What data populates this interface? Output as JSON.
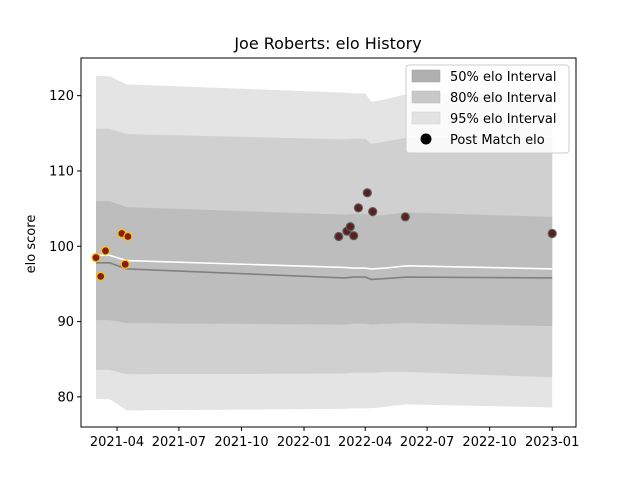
{
  "chart_data": {
    "type": "line",
    "title": "Joe Roberts: elo History",
    "xlabel": "",
    "ylabel": "elo score",
    "xlim": [
      "2021-02-07",
      "2023-02-05"
    ],
    "ylim": [
      76,
      125
    ],
    "x_ticks": [
      "2021-04-01",
      "2021-07-01",
      "2021-10-01",
      "2022-01-01",
      "2022-04-01",
      "2022-07-01",
      "2022-10-01",
      "2023-01-01"
    ],
    "x_tick_labels": [
      "2021-04",
      "2021-07",
      "2021-10",
      "2022-01",
      "2022-04",
      "2022-07",
      "2022-10",
      "2023-01"
    ],
    "y_ticks": [
      80,
      90,
      100,
      110,
      120
    ],
    "y_tick_labels": [
      "80",
      "90",
      "100",
      "110",
      "120"
    ],
    "grid": false,
    "legend_position": "top-right",
    "legend": [
      {
        "label": "50% elo Interval",
        "kind": "patch",
        "color": "#b0b0b0"
      },
      {
        "label": "80% elo Interval",
        "kind": "patch",
        "color": "#c8c8c8"
      },
      {
        "label": "95% elo Interval",
        "kind": "patch",
        "color": "#e2e2e2"
      },
      {
        "label": "Post Match elo",
        "kind": "marker",
        "color": "#000000"
      }
    ],
    "band_dates": [
      "2021-03-01",
      "2021-03-21",
      "2021-04-15",
      "2022-03-01",
      "2022-03-15",
      "2022-04-01",
      "2022-04-10",
      "2022-05-01",
      "2022-06-01",
      "2023-01-01"
    ],
    "interval_bands": [
      {
        "name": "95% elo Interval",
        "color": "#e4e4e4",
        "lower": [
          79.7,
          79.7,
          78.2,
          78.4,
          78.5,
          78.5,
          78.5,
          78.7,
          79.0,
          78.6
        ],
        "upper": [
          122.6,
          122.6,
          121.5,
          120.4,
          120.3,
          120.3,
          119.2,
          119.5,
          120.2,
          120.2
        ]
      },
      {
        "name": "80% elo Interval",
        "color": "#d0d0d0",
        "lower": [
          83.6,
          83.6,
          83.0,
          83.1,
          83.2,
          83.2,
          83.2,
          83.3,
          83.3,
          82.6
        ],
        "upper": [
          115.6,
          115.6,
          114.9,
          114.2,
          114.3,
          114.3,
          113.6,
          113.9,
          114.4,
          114.5
        ]
      },
      {
        "name": "50% elo Interval",
        "color": "#bdbdbd",
        "lower": [
          90.2,
          90.2,
          89.8,
          89.6,
          89.7,
          89.7,
          89.6,
          89.7,
          89.8,
          89.4
        ],
        "upper": [
          106.0,
          106.0,
          105.2,
          104.2,
          104.3,
          104.3,
          104.0,
          104.2,
          104.5,
          103.9
        ]
      }
    ],
    "series": [
      {
        "style": "mean",
        "color": "#ffffff",
        "values": [
          98.8,
          98.8,
          98.1,
          97.2,
          97.1,
          97.1,
          97.0,
          97.1,
          97.4,
          97.0
        ]
      },
      {
        "style": "median",
        "color": "#808080",
        "values": [
          97.8,
          97.8,
          97.0,
          95.8,
          95.9,
          95.9,
          95.6,
          95.7,
          95.9,
          95.8
        ]
      }
    ],
    "post_match_points": [
      {
        "date": "2021-03-01",
        "elo": 98.5,
        "fill": "#8b1a1a",
        "edge": "#f5c400"
      },
      {
        "date": "2021-03-08",
        "elo": 96.0,
        "fill": "#8b1a1a",
        "edge": "#f5c400"
      },
      {
        "date": "2021-03-15",
        "elo": 99.4,
        "fill": "#8b1a1a",
        "edge": "#f5c400"
      },
      {
        "date": "2021-04-08",
        "elo": 101.7,
        "fill": "#8b1a1a",
        "edge": "#f5c400"
      },
      {
        "date": "2021-04-13",
        "elo": 97.6,
        "fill": "#8b1a1a",
        "edge": "#f5c400"
      },
      {
        "date": "2021-04-17",
        "elo": 101.3,
        "fill": "#8b1a1a",
        "edge": "#f5c400"
      },
      {
        "date": "2022-02-21",
        "elo": 101.3,
        "fill": "#5a2020",
        "edge": "#5a5a5a"
      },
      {
        "date": "2022-03-05",
        "elo": 102.0,
        "fill": "#5a2020",
        "edge": "#5a5a5a"
      },
      {
        "date": "2022-03-10",
        "elo": 102.6,
        "fill": "#5a2020",
        "edge": "#5a5a5a"
      },
      {
        "date": "2022-03-15",
        "elo": 101.4,
        "fill": "#5a2020",
        "edge": "#5a5a5a"
      },
      {
        "date": "2022-03-22",
        "elo": 105.1,
        "fill": "#5a2020",
        "edge": "#5a5a5a"
      },
      {
        "date": "2022-04-04",
        "elo": 107.1,
        "fill": "#5a2020",
        "edge": "#5a5a5a"
      },
      {
        "date": "2022-04-12",
        "elo": 104.6,
        "fill": "#5a2020",
        "edge": "#5a5a5a"
      },
      {
        "date": "2022-05-30",
        "elo": 103.9,
        "fill": "#5a2020",
        "edge": "#5a5a5a"
      },
      {
        "date": "2023-01-01",
        "elo": 101.7,
        "fill": "#5a2020",
        "edge": "#5a5a5a"
      }
    ]
  }
}
